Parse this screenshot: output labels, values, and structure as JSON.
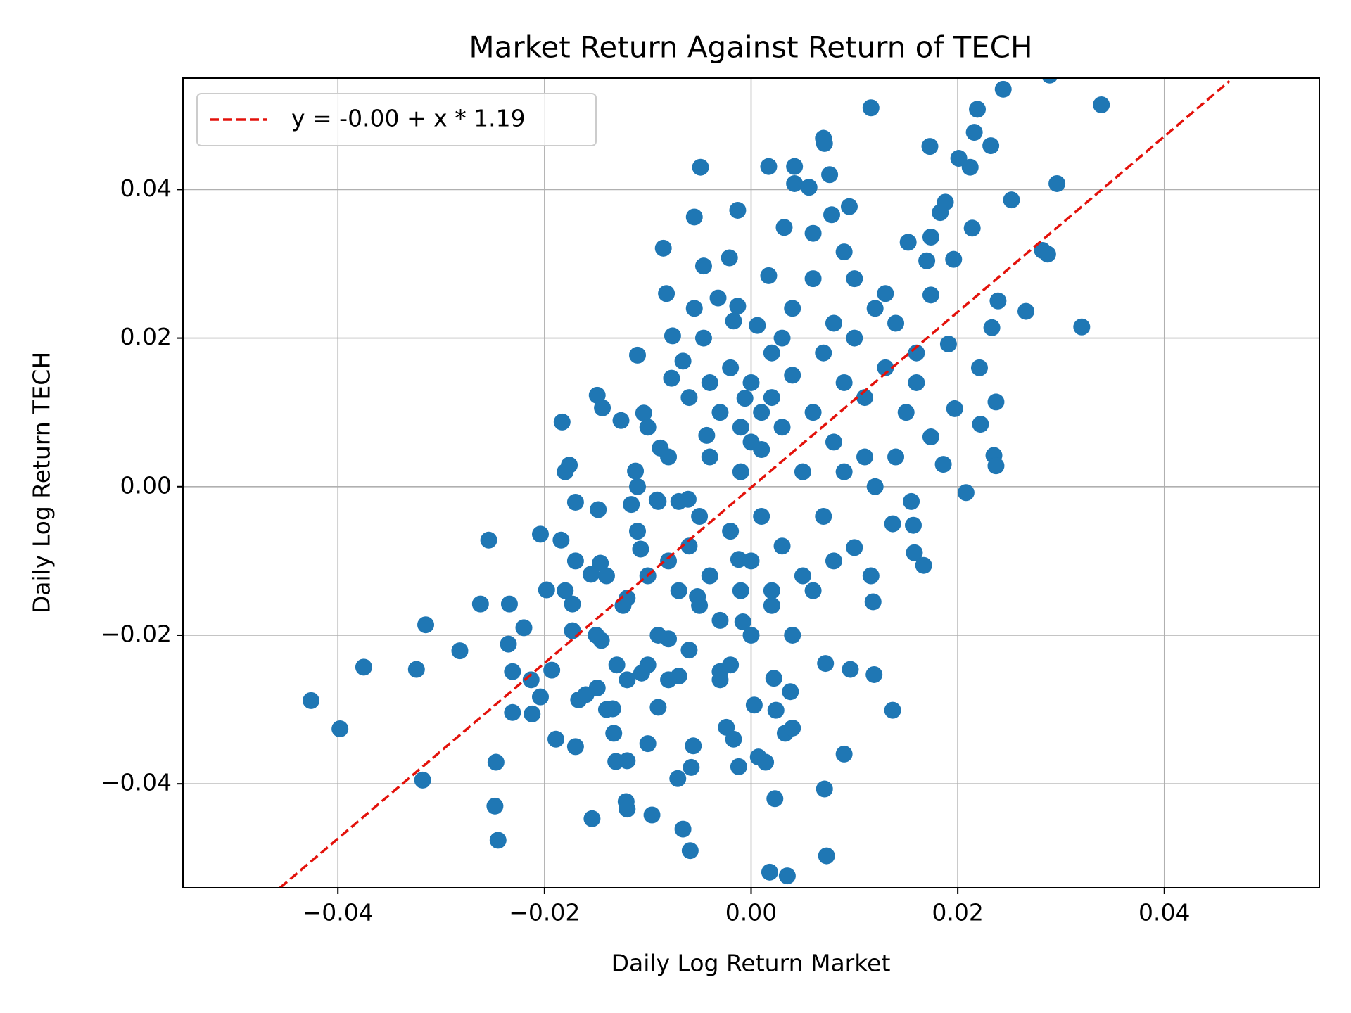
{
  "chart_data": {
    "type": "scatter",
    "title": "Market Return Against Return of TECH",
    "xlabel": "Daily Log Return Market",
    "ylabel": "Daily Log Return TECH",
    "xlim": [
      -0.055,
      0.055
    ],
    "ylim": [
      -0.054,
      0.055
    ],
    "xticks": [
      {
        "value": -0.04,
        "label": "−0.04"
      },
      {
        "value": -0.02,
        "label": "−0.02"
      },
      {
        "value": 0,
        "label": "0.00"
      },
      0.02,
      0.04
    ],
    "yticks": [
      {
        "value": -0.04,
        "label": "−0.04"
      },
      {
        "value": -0.02,
        "label": "−0.02"
      },
      {
        "value": 0,
        "label": "0.00"
      },
      0.02,
      0.04
    ],
    "grid": true,
    "legend": "upper left",
    "color": "#1f77b4",
    "x": [
      -0.0426,
      -0.0398,
      -0.0375,
      -0.0324,
      -0.0318,
      -0.0315,
      -0.0282,
      -0.0262,
      -0.0254,
      -0.0247,
      -0.0248,
      -0.0245,
      -0.0234,
      -0.0235,
      -0.0231,
      -0.0231,
      -0.022,
      -0.0213,
      -0.0212,
      -0.0204,
      -0.0204,
      -0.0198,
      -0.0193,
      -0.0189,
      -0.0183,
      -0.0184,
      -0.018,
      -0.0176,
      -0.0173,
      -0.0173,
      -0.017,
      -0.017,
      -0.0167,
      -0.0154,
      -0.0149,
      -0.0144,
      -0.0148,
      -0.0146,
      -0.0155,
      -0.0149,
      -0.0145,
      -0.0134,
      -0.0133,
      -0.0131,
      -0.0126,
      -0.0124,
      -0.0121,
      -0.012,
      -0.012,
      -0.0116,
      -0.0112,
      -0.011,
      -0.0107,
      -0.0106,
      -0.0104,
      -0.01,
      -0.0096,
      -0.0091,
      -0.009,
      -0.0088,
      -0.0085,
      -0.0082,
      -0.008,
      -0.0077,
      -0.0076,
      -0.0071,
      -0.007,
      -0.0066,
      -0.0066,
      -0.0061,
      -0.0059,
      -0.0058,
      -0.0056,
      -0.0055,
      -0.0055,
      -0.0052,
      -0.0049,
      -0.0046,
      -0.0046,
      -0.0043,
      -0.0032,
      -0.003,
      -0.0024,
      -0.0021,
      -0.0017,
      -0.0017,
      -0.0013,
      -0.0013,
      -0.0012,
      -0.0012,
      -0.0008,
      -0.0006,
      0.0003,
      0.0006,
      0.0007,
      0.0014,
      0.0017,
      0.0017,
      0.0018,
      0.0022,
      0.0023,
      0.0024,
      0.0032,
      0.0033,
      0.0035,
      0.0038,
      0.004,
      0.0042,
      0.0042,
      0.0056,
      0.006,
      0.007,
      0.0071,
      0.0071,
      0.0072,
      0.0073,
      0.0076,
      0.0078,
      0.009,
      0.009,
      0.0096,
      0.0095,
      0.01,
      0.0116,
      0.0119,
      0.0116,
      0.0118,
      0.0137,
      0.0137,
      0.0152,
      0.0155,
      0.0157,
      0.0158,
      0.0167,
      0.0173,
      0.0174,
      0.017,
      0.0174,
      0.0174,
      0.0183,
      0.0188,
      0.0186,
      0.0191,
      0.0196,
      0.0201,
      0.0197,
      0.0208,
      0.0212,
      0.0214,
      0.0216,
      0.0219,
      0.0221,
      0.0222,
      0.0232,
      0.0233,
      0.0235,
      0.0237,
      0.0237,
      0.0239,
      0.0244,
      0.0252,
      0.0266,
      0.0282,
      0.0287,
      0.0289,
      0.0296,
      0.032,
      0.0339,
      -0.012,
      -0.01,
      -0.008,
      -0.006,
      -0.005,
      -0.004,
      -0.003,
      -0.002,
      -0.001,
      0,
      0.001,
      0.002,
      0.003,
      0.004,
      0.005,
      0.006,
      0.007,
      0.008,
      0.009,
      0.01,
      0.011,
      0.012,
      0.013,
      0.014,
      0.015,
      0.016,
      -0.015,
      -0.014,
      -0.013,
      -0.011,
      -0.009,
      -0.007,
      -0.006,
      -0.005,
      -0.004,
      -0.003,
      -0.002,
      -0.001,
      0,
      0.001,
      0.002,
      0.003,
      0.004,
      0.005,
      0.006,
      0.007,
      0.008,
      0.009,
      0.01,
      0.011,
      -0.01,
      -0.008,
      -0.006,
      -0.004,
      -0.002,
      0,
      0.002,
      0.004,
      0.006,
      0.008,
      -0.016,
      -0.014,
      -0.012,
      -0.01,
      -0.008,
      -0.003,
      0,
      0.002,
      0.012,
      0.014,
      0.016,
      0.013,
      0.003,
      0.001,
      -0.001,
      -0.011,
      -0.009,
      -0.007,
      -0.018,
      -0.017
    ],
    "values": [
      -0.0288,
      -0.0326,
      -0.0243,
      -0.0246,
      -0.0395,
      -0.0186,
      -0.0221,
      -0.0158,
      -0.0072,
      -0.0371,
      -0.043,
      -0.0476,
      -0.0158,
      -0.0212,
      -0.0249,
      -0.0304,
      -0.019,
      -0.026,
      -0.0306,
      -0.0064,
      -0.0283,
      -0.0139,
      -0.0247,
      -0.034,
      0.0087,
      -0.0072,
      0.002,
      0.0029,
      -0.0194,
      -0.0158,
      -0.0021,
      -0.035,
      -0.0287,
      -0.0447,
      0.0123,
      0.0106,
      -0.0031,
      -0.0103,
      -0.0118,
      -0.0271,
      -0.0207,
      -0.0299,
      -0.0332,
      -0.037,
      0.0089,
      -0.016,
      -0.0424,
      -0.0434,
      -0.0369,
      -0.0024,
      0.0021,
      0.0177,
      -0.0084,
      -0.0251,
      0.0099,
      -0.0346,
      -0.0442,
      -0.0018,
      -0.0297,
      0.0052,
      0.0321,
      0.026,
      -0.0205,
      0.0146,
      0.0203,
      -0.0393,
      -0.0255,
      -0.0461,
      0.0169,
      -0.0017,
      -0.049,
      -0.0378,
      -0.0349,
      0.0363,
      0.024,
      -0.0148,
      0.043,
      0.0297,
      0.02,
      0.0069,
      0.0254,
      -0.0249,
      -0.0324,
      0.0308,
      -0.034,
      0.0223,
      0.0372,
      0.0243,
      -0.0377,
      -0.0098,
      -0.0182,
      0.0119,
      -0.0294,
      0.0217,
      -0.0364,
      -0.0371,
      0.0431,
      0.0284,
      -0.0519,
      -0.0258,
      -0.042,
      -0.0301,
      0.0349,
      -0.0332,
      -0.0524,
      -0.0276,
      -0.0325,
      0.0431,
      0.0408,
      0.0403,
      0.0341,
      0.0469,
      0.0462,
      -0.0407,
      -0.0238,
      -0.0497,
      0.042,
      0.0366,
      0.0316,
      -0.036,
      -0.0246,
      0.0377,
      -0.0082,
      0.051,
      -0.0253,
      -0.012,
      -0.0155,
      -0.0301,
      -0.005,
      0.0329,
      -0.002,
      -0.0052,
      -0.0089,
      -0.0106,
      0.0458,
      0.0336,
      0.0304,
      0.0258,
      0.0067,
      0.0369,
      0.0383,
      0.003,
      0.0192,
      0.0306,
      0.0442,
      0.0105,
      -0.0008,
      0.043,
      0.0348,
      0.0477,
      0.0508,
      0.016,
      0.0084,
      0.0459,
      0.0214,
      0.0042,
      0.0114,
      0.0028,
      0.025,
      0.0535,
      0.0386,
      0.0236,
      0.0318,
      0.0313,
      0.0554,
      0.0408,
      0.0215,
      0.0514,
      -0.015,
      -0.012,
      -0.01,
      -0.008,
      -0.004,
      -0.012,
      -0.018,
      -0.006,
      0.002,
      -0.01,
      0.005,
      0.012,
      0.008,
      0.015,
      0.002,
      0.01,
      0.018,
      0.006,
      0.014,
      0.02,
      0.012,
      0.024,
      0.016,
      0.022,
      0.01,
      0.014,
      -0.02,
      -0.012,
      -0.024,
      -0.006,
      -0.02,
      -0.002,
      -0.022,
      -0.016,
      0.004,
      0.01,
      -0.024,
      -0.014,
      0.006,
      -0.004,
      0.018,
      -0.008,
      0.024,
      -0.012,
      0.028,
      -0.004,
      0.022,
      0.002,
      0.028,
      0.004,
      0.008,
      0.004,
      0.012,
      0.014,
      0.016,
      0.014,
      -0.016,
      -0.02,
      -0.014,
      -0.01,
      -0.028,
      -0.03,
      -0.026,
      -0.024,
      -0.026,
      -0.026,
      -0.02,
      -0.014,
      0,
      0.004,
      0.018,
      0.026,
      0.02,
      0.01,
      0.008,
      0,
      -0.002,
      -0.014,
      -0.014,
      -0.01
    ],
    "fit": {
      "name": "y = -0.00 + x * 1.19",
      "color": "#e3120b",
      "x": [
        -0.0456,
        0.0463
      ],
      "values": [
        -0.054,
        0.0546
      ]
    }
  }
}
